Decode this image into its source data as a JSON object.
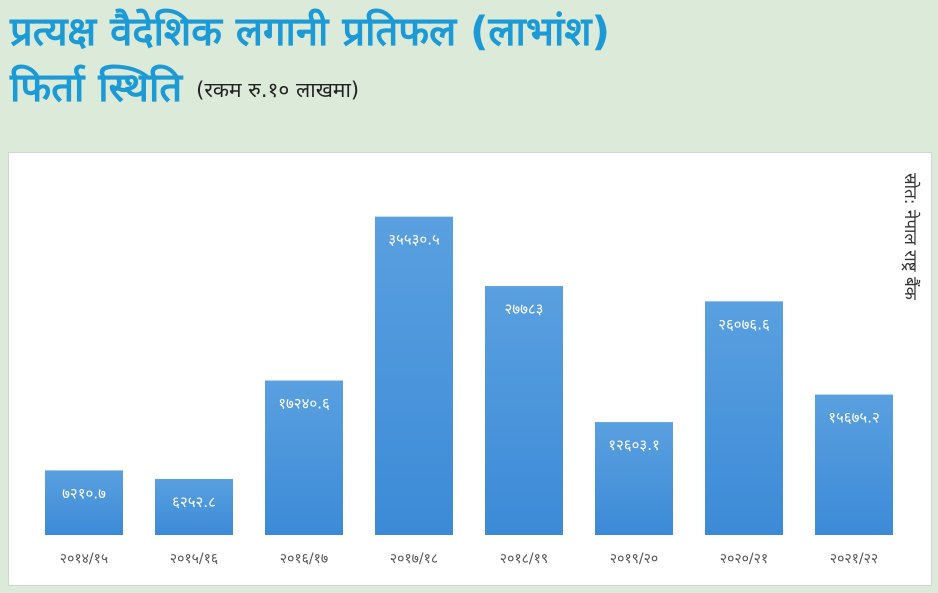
{
  "title_line1": "प्रत्यक्ष वैदेशिक लगानी प्रतिफल (लाभांश)",
  "title_line2": "फिर्ता स्थिति",
  "unit_note": "(रकम रु.१० लाखमा)",
  "source_note": "स्रोत: नेपाल राष्ट्र बैंक",
  "colors": {
    "bar": "#3c8ad7",
    "bar_top": "#5aa0e0",
    "title": "#1c9ad6",
    "background": "#dcebd9"
  },
  "chart_data": {
    "type": "bar",
    "categories": [
      "२०१४/१५",
      "२०१५/१६",
      "२०१६/१७",
      "२०१७/१८",
      "२०१८/१९",
      "२०१९/२०",
      "२०२०/२१",
      "२०२१/२२"
    ],
    "values": [
      7210.7,
      6252.8,
      17240.6,
      35530.5,
      27783,
      12603.1,
      26076.6,
      15675.2
    ],
    "data_labels": [
      "७२१०.७",
      "६२५२.८",
      "१७२४०.६",
      "३५५३०.५",
      "२७७८३",
      "१२६०३.१",
      "२६०७६.६",
      "१५६७५.२"
    ],
    "ylim": [
      0,
      40000
    ],
    "grid": false
  }
}
